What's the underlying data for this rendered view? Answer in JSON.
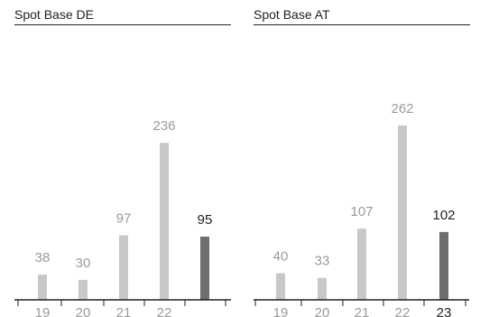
{
  "chart_data": [
    {
      "type": "bar",
      "title": "Spot Base DE",
      "categories": [
        "19",
        "20",
        "21",
        "22",
        ""
      ],
      "values": [
        38,
        30,
        97,
        236,
        95
      ],
      "highlight_index": 4,
      "ylim": [
        0,
        262
      ],
      "grid": false,
      "colors": {
        "bar": "#c8c8c8",
        "highlight": "#6e6e6e",
        "label": "#9a9a9a",
        "highlight_label": "#222222",
        "axis": "#222222"
      }
    },
    {
      "type": "bar",
      "title": "Spot Base AT",
      "categories": [
        "19",
        "20",
        "21",
        "22",
        "23"
      ],
      "values": [
        40,
        33,
        107,
        262,
        102
      ],
      "highlight_index": 4,
      "ylim": [
        0,
        262
      ],
      "grid": false,
      "colors": {
        "bar": "#c8c8c8",
        "highlight": "#6e6e6e",
        "label": "#9a9a9a",
        "highlight_label": "#222222",
        "axis": "#222222"
      }
    }
  ]
}
